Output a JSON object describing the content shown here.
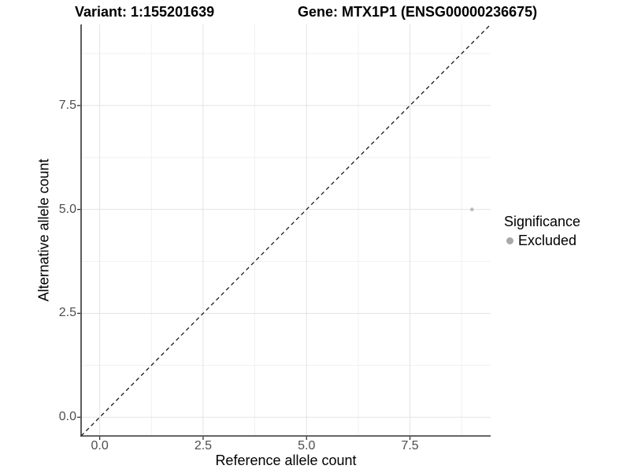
{
  "header": {
    "title_left": "Variant: 1:155201639",
    "title_right": "Gene: MTX1P1 (ENSG00000236675)"
  },
  "chart_data": {
    "type": "scatter",
    "title_left": "Variant: 1:155201639",
    "title_right": "Gene: MTX1P1 (ENSG00000236675)",
    "xlabel": "Reference allele count",
    "ylabel": "Alternative allele count",
    "xlim": [
      -0.45,
      9.45
    ],
    "ylim": [
      -0.45,
      9.45
    ],
    "x_ticks": [
      0.0,
      2.5,
      5.0,
      7.5
    ],
    "y_ticks": [
      0.0,
      2.5,
      5.0,
      7.5
    ],
    "x_minor_ticks": [
      1.25,
      3.75,
      6.25,
      8.75
    ],
    "y_minor_ticks": [
      1.25,
      3.75,
      6.25,
      8.75
    ],
    "tick_decimals": 1,
    "grid": true,
    "points": [
      {
        "x": 9,
        "y": 5,
        "series": "Excluded"
      }
    ],
    "point_radius": 2.4,
    "identity_line": {
      "from": [
        -0.45,
        -0.45
      ],
      "to": [
        9.45,
        9.45
      ],
      "style": "dashed"
    },
    "legend": {
      "title": "Significance",
      "position": "right",
      "items": [
        {
          "label": "Excluded",
          "color": "#a8a8a8"
        }
      ]
    },
    "colors": {
      "point": "#bdbdbd",
      "legend_swatch": "#a8a8a8",
      "grid_major": "#e3e3e3",
      "grid_minor": "#f1f1f1",
      "axis_line": "#333333",
      "tick_mark": "#333333",
      "tick_label": "#4d4d4d",
      "diagonal": "#1a1a1a"
    }
  }
}
